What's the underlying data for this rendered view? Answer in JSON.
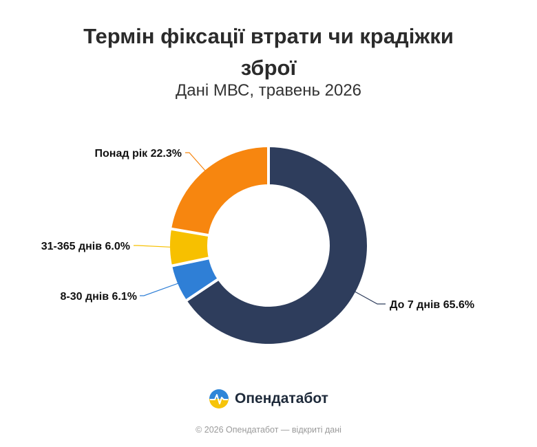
{
  "header": {
    "title": "Термін фіксації втрати чи крадіжки зброї",
    "subtitle": "Дані МВС, травень 2026"
  },
  "brand": {
    "name": "Опендатабот",
    "logo_icon": "opendatabot-logo-icon"
  },
  "footer": {
    "text": "© 2026 Опендатабот — відкриті дані"
  },
  "chart_data": {
    "type": "pie",
    "variant": "donut",
    "title": "Термін фіксації втрати чи крадіжки зброї",
    "subtitle": "Дані МВС, травень 2026",
    "series": [
      {
        "name": "До 7 днів",
        "value": 65.6,
        "label": "До 7 днів 65.6%",
        "color": "#2e3d5c"
      },
      {
        "name": "8-30 днів",
        "value": 6.1,
        "label": "8-30 днів 6.1%",
        "color": "#2f7fd6"
      },
      {
        "name": "31-365 днів",
        "value": 6.0,
        "label": "31-365 днів 6.0%",
        "color": "#f7c000"
      },
      {
        "name": "Понад рік",
        "value": 22.3,
        "label": "Понад рік 22.3%",
        "color": "#f7860f"
      }
    ],
    "legend": "none"
  }
}
